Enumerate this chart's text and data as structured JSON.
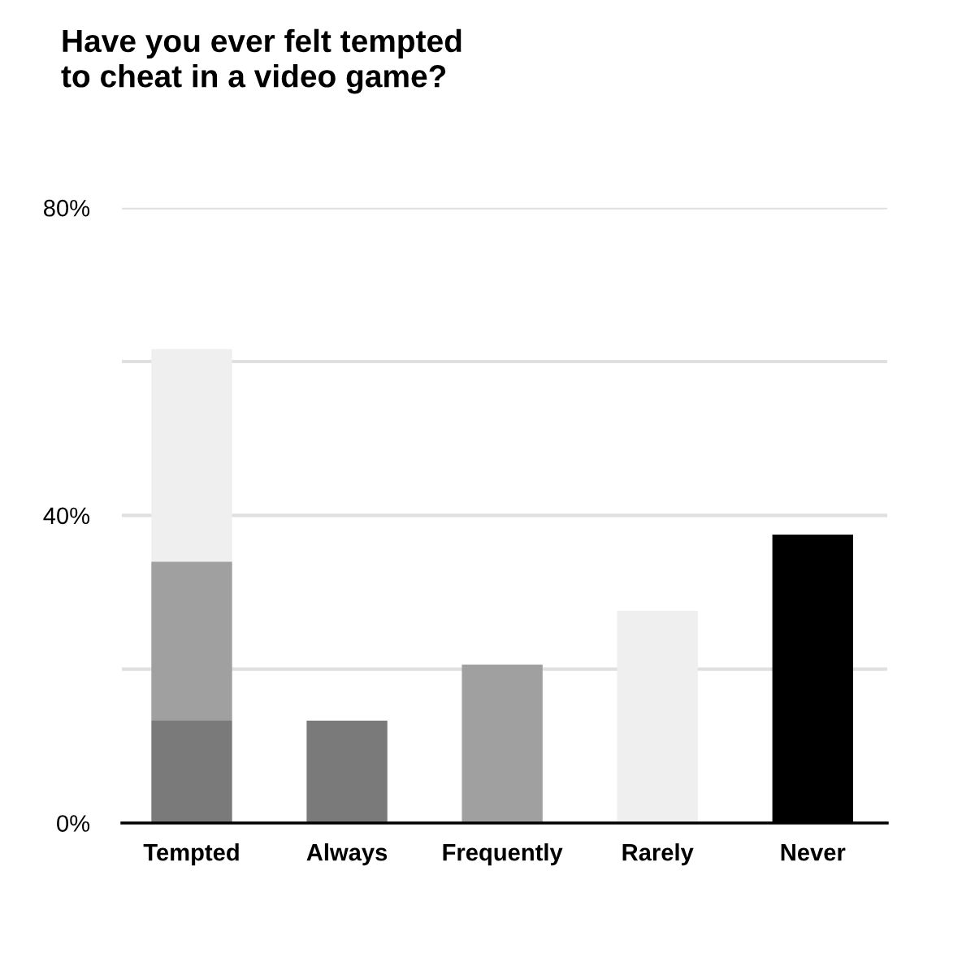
{
  "chart_data": {
    "type": "bar",
    "title": "Have you ever felt tempted\nto cheat in a video game?",
    "categories": [
      "Tempted",
      "Always",
      "Frequently",
      "Rarely",
      "Never"
    ],
    "stacked": true,
    "series": [
      {
        "color": "#7a7a7a",
        "values": [
          13.3,
          13.3,
          null,
          null,
          null
        ]
      },
      {
        "color": "#a0a0a0",
        "values": [
          20.7,
          null,
          20.6,
          null,
          null
        ]
      },
      {
        "color": "#efefef",
        "values": [
          27.6,
          null,
          null,
          27.6,
          null
        ]
      },
      {
        "color": "#000000",
        "values": [
          null,
          null,
          null,
          null,
          37.5
        ]
      }
    ],
    "ylim": [
      0,
      80
    ],
    "yticks": [
      {
        "value": 0,
        "label": "0%"
      },
      {
        "value": 20,
        "label": null
      },
      {
        "value": 40,
        "label": "40%"
      },
      {
        "value": 60,
        "label": null
      },
      {
        "value": 80,
        "label": "80%"
      }
    ],
    "grid": "y"
  }
}
